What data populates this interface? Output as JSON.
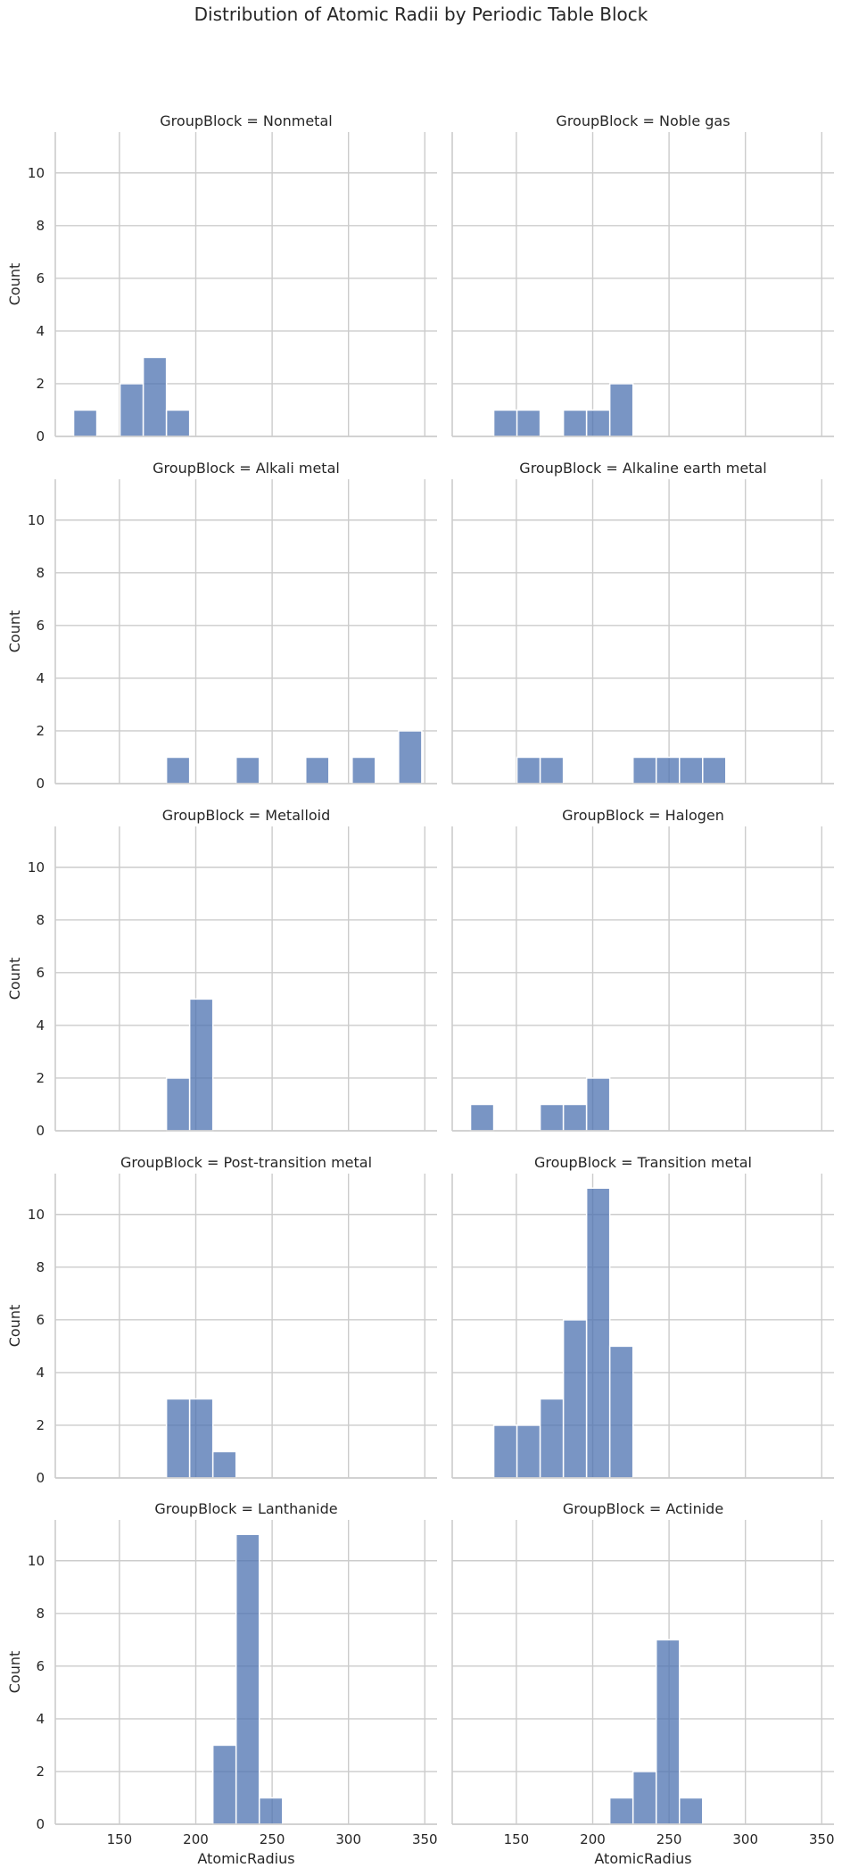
{
  "title": "Distribution of Atomic Radii by Periodic Table Block",
  "chart_data": {
    "type": "bar",
    "title": "Distribution of Atomic Radii by Periodic Table Block",
    "xlabel": "AtomicRadius",
    "ylabel": "Count",
    "xlim": [
      108,
      358
    ],
    "ylim": [
      0,
      11.55
    ],
    "xticks": [
      "150",
      "200",
      "250",
      "300",
      "350"
    ],
    "yticks": [
      "0",
      "2",
      "4",
      "6",
      "8",
      "10"
    ],
    "grid": true,
    "bar_color": "#4c72b0",
    "bin_width": 15.2,
    "facet_label_prefix": "GroupBlock = ",
    "panels": [
      {
        "name": "Nonmetal",
        "title": "GroupBlock = Nonmetal",
        "bins": [
          {
            "start": 120,
            "count": 1
          },
          {
            "start": 150.4,
            "count": 2
          },
          {
            "start": 165.6,
            "count": 3
          },
          {
            "start": 180.8,
            "count": 1
          }
        ]
      },
      {
        "name": "Noble gas",
        "title": "GroupBlock = Noble gas",
        "bins": [
          {
            "start": 135.2,
            "count": 1
          },
          {
            "start": 150.4,
            "count": 1
          },
          {
            "start": 180.8,
            "count": 1
          },
          {
            "start": 196,
            "count": 1
          },
          {
            "start": 211.2,
            "count": 2
          }
        ]
      },
      {
        "name": "Alkali metal",
        "title": "GroupBlock = Alkali metal",
        "bins": [
          {
            "start": 180.8,
            "count": 1
          },
          {
            "start": 226.4,
            "count": 1
          },
          {
            "start": 272,
            "count": 1
          },
          {
            "start": 302.4,
            "count": 1
          },
          {
            "start": 332.8,
            "count": 2
          }
        ]
      },
      {
        "name": "Alkaline earth metal",
        "title": "GroupBlock = Alkaline earth metal",
        "bins": [
          {
            "start": 150.4,
            "count": 1
          },
          {
            "start": 165.6,
            "count": 1
          },
          {
            "start": 226.4,
            "count": 1
          },
          {
            "start": 241.6,
            "count": 1
          },
          {
            "start": 256.8,
            "count": 1
          },
          {
            "start": 272,
            "count": 1
          }
        ]
      },
      {
        "name": "Metalloid",
        "title": "GroupBlock = Metalloid",
        "bins": [
          {
            "start": 180.8,
            "count": 2
          },
          {
            "start": 196,
            "count": 5
          }
        ]
      },
      {
        "name": "Halogen",
        "title": "GroupBlock = Halogen",
        "bins": [
          {
            "start": 120,
            "count": 1
          },
          {
            "start": 165.6,
            "count": 1
          },
          {
            "start": 180.8,
            "count": 1
          },
          {
            "start": 196,
            "count": 2
          }
        ]
      },
      {
        "name": "Post-transition metal",
        "title": "GroupBlock = Post-transition metal",
        "bins": [
          {
            "start": 180.8,
            "count": 3
          },
          {
            "start": 196,
            "count": 3
          },
          {
            "start": 211.2,
            "count": 1
          }
        ]
      },
      {
        "name": "Transition metal",
        "title": "GroupBlock = Transition metal",
        "bins": [
          {
            "start": 135.2,
            "count": 2
          },
          {
            "start": 150.4,
            "count": 2
          },
          {
            "start": 165.6,
            "count": 3
          },
          {
            "start": 180.8,
            "count": 6
          },
          {
            "start": 196,
            "count": 11
          },
          {
            "start": 211.2,
            "count": 5
          }
        ]
      },
      {
        "name": "Lanthanide",
        "title": "GroupBlock = Lanthanide",
        "bins": [
          {
            "start": 211.2,
            "count": 3
          },
          {
            "start": 226.4,
            "count": 11
          },
          {
            "start": 241.6,
            "count": 1
          }
        ]
      },
      {
        "name": "Actinide",
        "title": "GroupBlock = Actinide",
        "bins": [
          {
            "start": 211.2,
            "count": 1
          },
          {
            "start": 226.4,
            "count": 2
          },
          {
            "start": 241.6,
            "count": 7
          },
          {
            "start": 256.8,
            "count": 1
          }
        ]
      }
    ]
  }
}
